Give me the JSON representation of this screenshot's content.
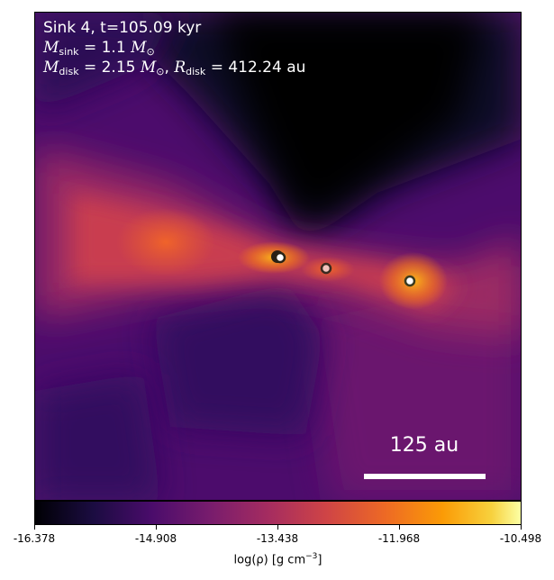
{
  "title_line": "Sink 4, t=105.09 kyr",
  "sink_mass": {
    "symbol": "M",
    "subscript": "sink",
    "value": "= 1.1",
    "unit": "M",
    "unit_subscript": "⊙"
  },
  "disk_line": {
    "mass_symbol": "M",
    "mass_subscript": "disk",
    "mass_value": "= 2.15",
    "mass_unit": "M",
    "mass_unit_subscript": "⊙",
    "separator": ",",
    "radius_symbol": "R",
    "radius_subscript": "disk",
    "radius_value": "= 412.24 au"
  },
  "scale_bar": {
    "label": "125 au"
  },
  "colorbar": {
    "ticks": [
      "-16.378",
      "-14.908",
      "-13.438",
      "-11.968",
      "-10.498"
    ],
    "label_prefix": "log(ρ) [g cm",
    "label_exponent": "−3",
    "label_suffix": "]",
    "colormap": "inferno",
    "min": -16.378,
    "max": -10.498
  },
  "sinks": [
    {
      "name": "sink-primary",
      "fill": "#ffffff"
    },
    {
      "name": "sink-companion-1",
      "fill": "#f2c3bd"
    },
    {
      "name": "sink-companion-2",
      "fill": "#ffffff"
    }
  ]
}
